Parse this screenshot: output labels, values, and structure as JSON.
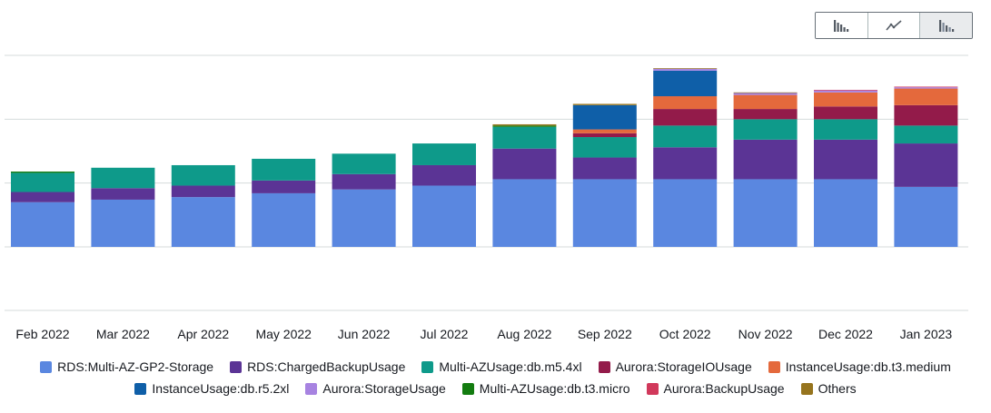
{
  "toolbar": {
    "chart_types": [
      {
        "icon": "bar-chart-icon",
        "active": false
      },
      {
        "icon": "line-chart-icon",
        "active": false
      },
      {
        "icon": "stacked-bar-chart-icon",
        "active": true
      }
    ]
  },
  "chart_data": {
    "type": "bar",
    "stacked": true,
    "grid": true,
    "legend_position": "bottom",
    "categories": [
      "Feb 2022",
      "Mar 2022",
      "Apr 2022",
      "May 2022",
      "Jun 2022",
      "Jul 2022",
      "Aug 2022",
      "Sep 2022",
      "Oct 2022",
      "Nov 2022",
      "Dec 2022",
      "Jan 2023"
    ],
    "ylim": [
      0,
      150
    ],
    "y_gridlines": [
      0,
      50,
      100,
      150
    ],
    "series": [
      {
        "name": "RDS:Multi-AZ-GP2-Storage",
        "color": "#5a87e0",
        "values": [
          35,
          37,
          39,
          42,
          45,
          48,
          53,
          53,
          53,
          53,
          53,
          47
        ]
      },
      {
        "name": "RDS:ChargedBackupUsage",
        "color": "#5b3495",
        "values": [
          8,
          9,
          9,
          10,
          12,
          16,
          24,
          17,
          25,
          31,
          31,
          34
        ]
      },
      {
        "name": "Multi-AZUsage:db.m5.4xl",
        "color": "#0e9a8a",
        "values": [
          15,
          16,
          16,
          17,
          16,
          17,
          17,
          16,
          17,
          16,
          16,
          14
        ]
      },
      {
        "name": "Aurora:StorageIOUsage",
        "color": "#931b4a",
        "values": [
          0,
          0,
          0,
          0,
          0,
          0,
          0,
          3,
          13,
          8,
          10,
          16
        ]
      },
      {
        "name": "InstanceUsage:db.t3.medium",
        "color": "#e4693c",
        "values": [
          0,
          0,
          0,
          0,
          0,
          0,
          0,
          3,
          10,
          11,
          11,
          13
        ]
      },
      {
        "name": "InstanceUsage:db.r5.2xl",
        "color": "#0f5fa8",
        "values": [
          0,
          0,
          0,
          0,
          0,
          0,
          0,
          19,
          20,
          0,
          0,
          0
        ]
      },
      {
        "name": "Aurora:StorageUsage",
        "color": "#a783e1",
        "values": [
          0,
          0,
          0,
          0,
          0,
          0,
          0,
          0,
          1.5,
          1.5,
          1.5,
          1
        ]
      },
      {
        "name": "Multi-AZUsage:db.t3.micro",
        "color": "#137c10",
        "values": [
          1,
          0,
          0,
          0,
          0,
          0,
          1,
          0,
          0,
          0,
          0,
          0
        ]
      },
      {
        "name": "Aurora:BackupUsage",
        "color": "#d1395b",
        "values": [
          0,
          0,
          0,
          0,
          0,
          0,
          0,
          0,
          0,
          0,
          0.5,
          0.5
        ]
      },
      {
        "name": "Others",
        "color": "#96741e",
        "values": [
          0,
          0,
          0,
          0,
          0,
          0,
          1,
          1,
          0.5,
          0.5,
          0,
          0
        ]
      }
    ],
    "legend_rows": [
      [
        0,
        1,
        2,
        3,
        4
      ],
      [
        5,
        6,
        7,
        8,
        9
      ]
    ]
  }
}
